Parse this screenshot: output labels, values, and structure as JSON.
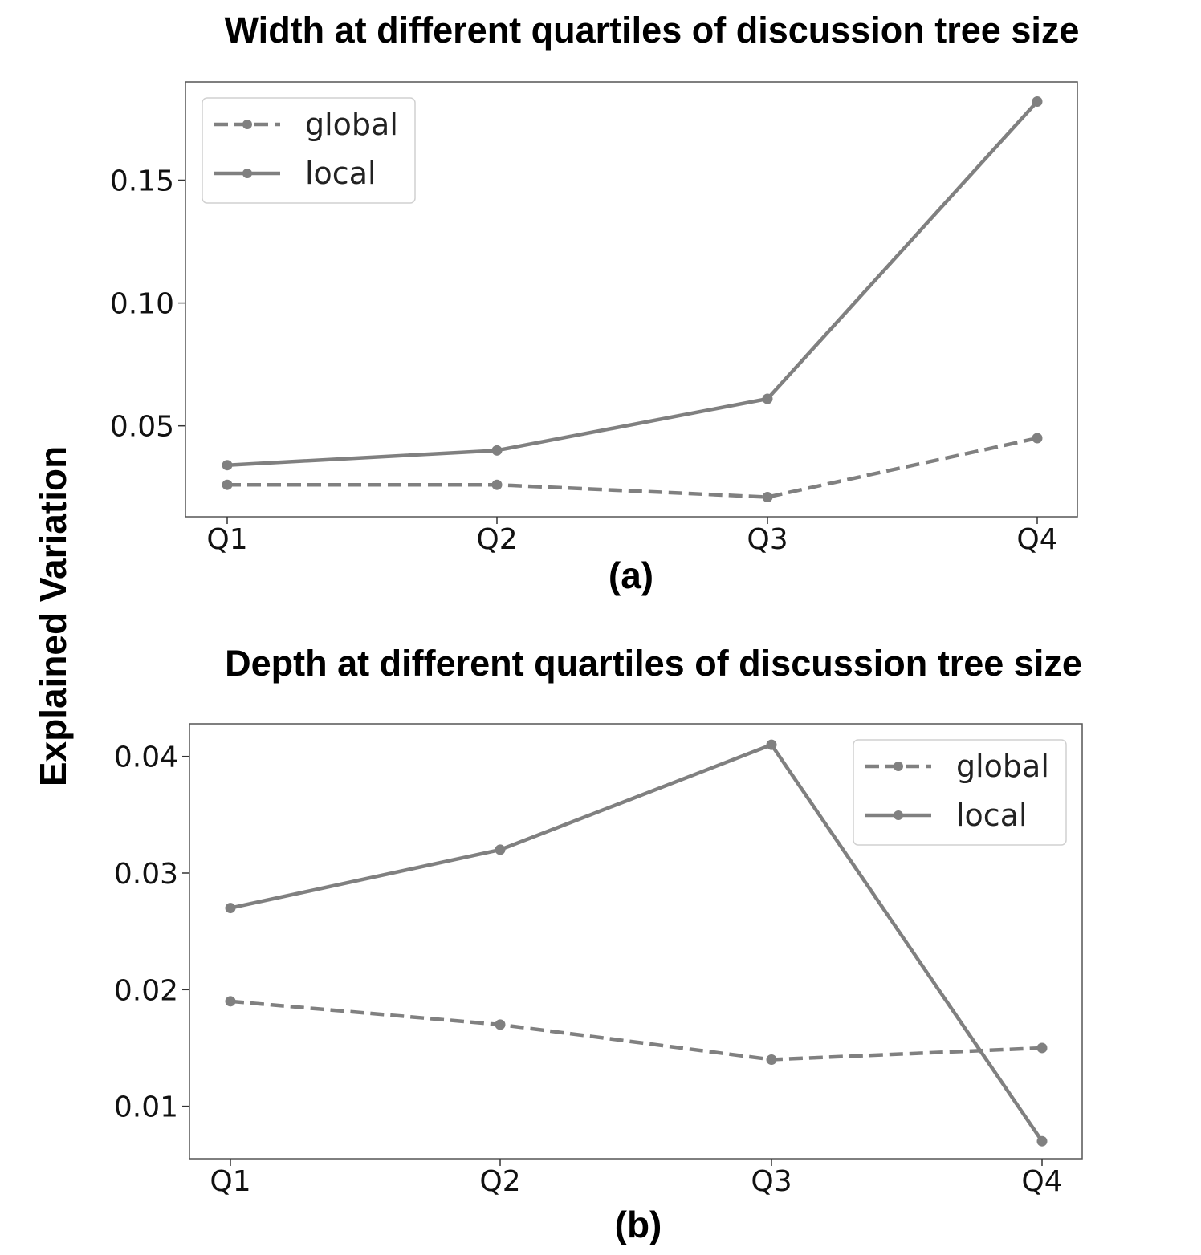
{
  "figure": {
    "ylabel": "Explained Variation"
  },
  "chart_data": [
    {
      "type": "line",
      "title": "Width at different quartiles of discussion tree size",
      "panel_label": "(a)",
      "xlabel": "",
      "ylabel": "Explained Variation",
      "categories": [
        "Q1",
        "Q2",
        "Q3",
        "Q4"
      ],
      "ylim": [
        0.013,
        0.19
      ],
      "yticks": [
        0.05,
        0.1,
        0.15
      ],
      "ytick_labels": [
        "0.05",
        "0.10",
        "0.15"
      ],
      "legend_position": "upper-left",
      "series": [
        {
          "name": "global",
          "style": "dashed",
          "color": "#808080",
          "values": [
            0.026,
            0.026,
            0.021,
            0.045
          ]
        },
        {
          "name": "local",
          "style": "solid",
          "color": "#808080",
          "values": [
            0.034,
            0.04,
            0.061,
            0.182
          ]
        }
      ]
    },
    {
      "type": "line",
      "title": "Depth at different quartiles of discussion tree size",
      "panel_label": "(b)",
      "xlabel": "",
      "ylabel": "Explained Variation",
      "categories": [
        "Q1",
        "Q2",
        "Q3",
        "Q4"
      ],
      "ylim": [
        0.0055,
        0.0428
      ],
      "yticks": [
        0.01,
        0.02,
        0.03,
        0.04
      ],
      "ytick_labels": [
        "0.01",
        "0.02",
        "0.03",
        "0.04"
      ],
      "legend_position": "upper-right",
      "series": [
        {
          "name": "global",
          "style": "dashed",
          "color": "#808080",
          "values": [
            0.019,
            0.017,
            0.014,
            0.015
          ]
        },
        {
          "name": "local",
          "style": "solid",
          "color": "#808080",
          "values": [
            0.027,
            0.032,
            0.041,
            0.007
          ]
        }
      ]
    }
  ]
}
